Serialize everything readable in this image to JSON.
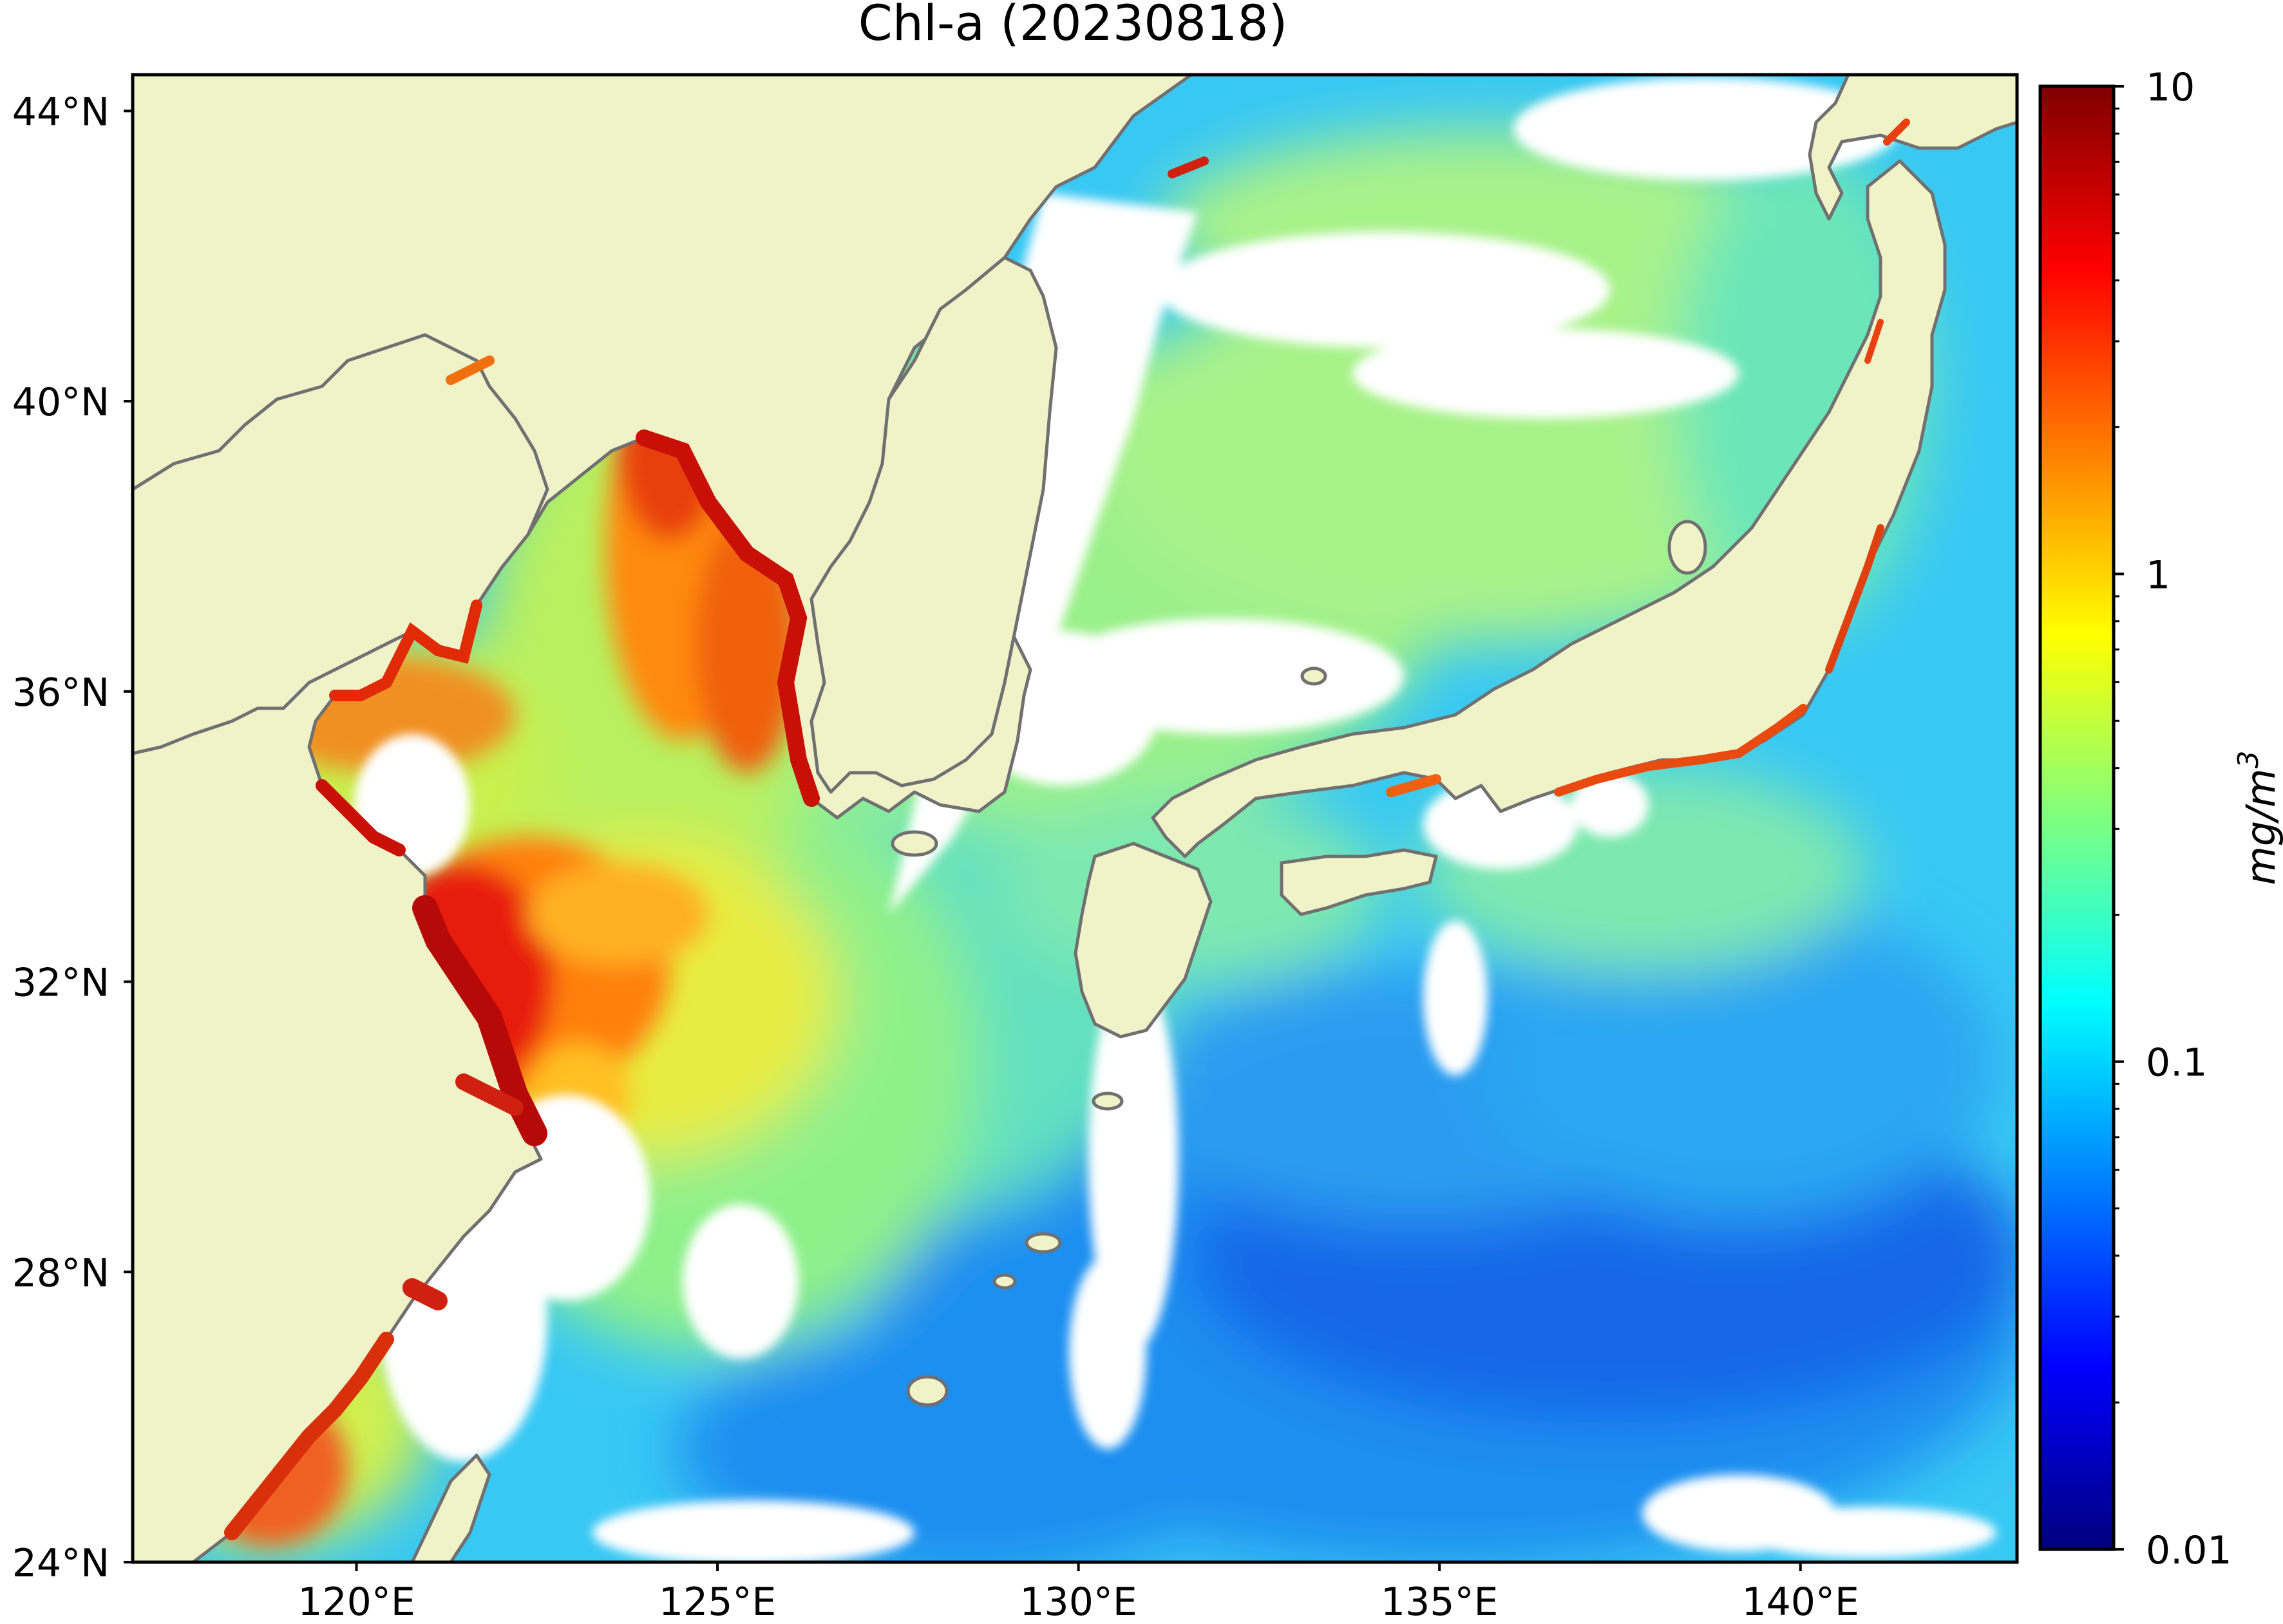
{
  "title": "Chl-a (20230818)",
  "map": {
    "lon_range": [
      116.9,
      143.0
    ],
    "lat_range": [
      24.0,
      44.5
    ],
    "lat_ticks": [
      {
        "value": 44,
        "label": "44°N"
      },
      {
        "value": 40,
        "label": "40°N"
      },
      {
        "value": 36,
        "label": "36°N"
      },
      {
        "value": 32,
        "label": "32°N"
      },
      {
        "value": 28,
        "label": "28°N"
      },
      {
        "value": 24,
        "label": "24°N"
      }
    ],
    "lon_ticks": [
      {
        "value": 120,
        "label": "120°E"
      },
      {
        "value": 125,
        "label": "125°E"
      },
      {
        "value": 130,
        "label": "130°E"
      },
      {
        "value": 135,
        "label": "135°E"
      },
      {
        "value": 140,
        "label": "140°E"
      }
    ],
    "land_color": "#f0f2c8",
    "no_data_color": "#ffffff",
    "coastline_color": "#707070"
  },
  "colorbar": {
    "label": "mg/m³",
    "label_base": "mg/m",
    "label_sup": "3",
    "scale": "log",
    "colormap": "jet",
    "range": [
      0.01,
      10
    ],
    "ticks": [
      {
        "value": 10,
        "label": "10"
      },
      {
        "value": 1,
        "label": "1"
      },
      {
        "value": 0.1,
        "label": "0.1"
      },
      {
        "value": 0.01,
        "label": "0.01"
      }
    ],
    "stops": [
      "#00007f",
      "#0000ff",
      "#007fff",
      "#00ffff",
      "#7fff7f",
      "#ffff00",
      "#ff7f00",
      "#ff0000",
      "#7f0000"
    ]
  }
}
